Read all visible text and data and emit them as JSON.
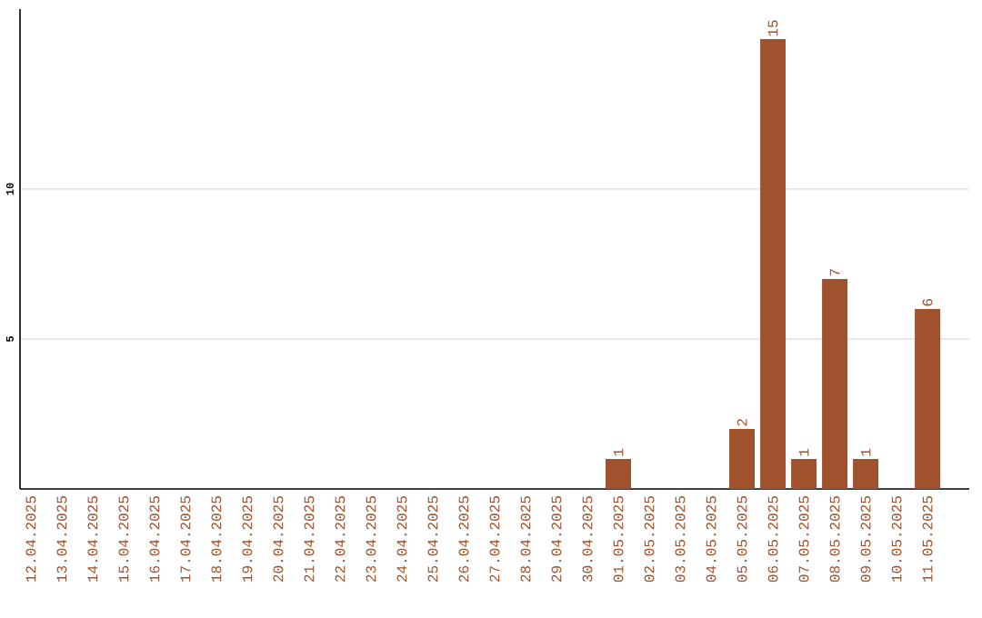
{
  "chart_data": {
    "type": "bar",
    "categories": [
      "12.04.2025",
      "13.04.2025",
      "14.04.2025",
      "15.04.2025",
      "16.04.2025",
      "17.04.2025",
      "18.04.2025",
      "19.04.2025",
      "20.04.2025",
      "21.04.2025",
      "22.04.2025",
      "23.04.2025",
      "24.04.2025",
      "25.04.2025",
      "26.04.2025",
      "27.04.2025",
      "28.04.2025",
      "29.04.2025",
      "30.04.2025",
      "01.05.2025",
      "02.05.2025",
      "03.05.2025",
      "04.05.2025",
      "05.05.2025",
      "06.05.2025",
      "07.05.2025",
      "08.05.2025",
      "09.05.2025",
      "10.05.2025",
      "11.05.2025"
    ],
    "values": [
      0,
      0,
      0,
      0,
      0,
      0,
      0,
      0,
      0,
      0,
      0,
      0,
      0,
      0,
      0,
      0,
      0,
      0,
      0,
      1,
      0,
      0,
      0,
      2,
      15,
      1,
      7,
      1,
      0,
      6
    ],
    "value_labels": [
      null,
      null,
      null,
      null,
      null,
      null,
      null,
      null,
      null,
      null,
      null,
      null,
      null,
      null,
      null,
      null,
      null,
      null,
      null,
      "1",
      null,
      null,
      null,
      "2",
      "15",
      "1",
      "7",
      "1",
      null,
      "6"
    ],
    "color": "#a0522d",
    "ylim": [
      0,
      16
    ],
    "yticks": [
      5,
      10
    ],
    "grid": "y"
  }
}
